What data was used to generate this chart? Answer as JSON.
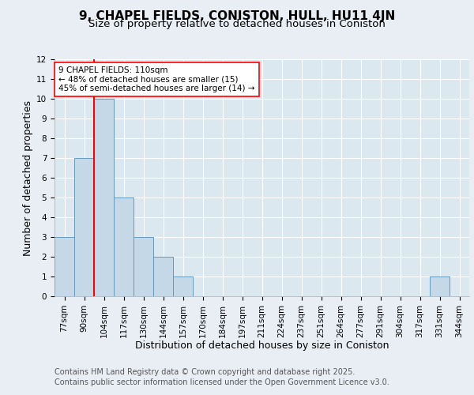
{
  "title": "9, CHAPEL FIELDS, CONISTON, HULL, HU11 4JN",
  "subtitle": "Size of property relative to detached houses in Coniston",
  "xlabel": "Distribution of detached houses by size in Coniston",
  "ylabel": "Number of detached properties",
  "bins": [
    "77sqm",
    "90sqm",
    "104sqm",
    "117sqm",
    "130sqm",
    "144sqm",
    "157sqm",
    "170sqm",
    "184sqm",
    "197sqm",
    "211sqm",
    "224sqm",
    "237sqm",
    "251sqm",
    "264sqm",
    "277sqm",
    "291sqm",
    "304sqm",
    "317sqm",
    "331sqm",
    "344sqm"
  ],
  "values": [
    3,
    7,
    10,
    5,
    3,
    2,
    1,
    0,
    0,
    0,
    0,
    0,
    0,
    0,
    0,
    0,
    0,
    0,
    0,
    1,
    0
  ],
  "bar_color": "#c5d8e8",
  "bar_edge_color": "#6699bb",
  "red_line_index": 2,
  "annotation_text": "9 CHAPEL FIELDS: 110sqm\n← 48% of detached houses are smaller (15)\n45% of semi-detached houses are larger (14) →",
  "ylim": [
    0,
    12
  ],
  "yticks": [
    0,
    1,
    2,
    3,
    4,
    5,
    6,
    7,
    8,
    9,
    10,
    11,
    12
  ],
  "footer_line1": "Contains HM Land Registry data © Crown copyright and database right 2025.",
  "footer_line2": "Contains public sector information licensed under the Open Government Licence v3.0.",
  "bg_color": "#e8eef4",
  "plot_bg_color": "#dce8f0",
  "grid_color": "#ffffff",
  "title_fontsize": 11,
  "subtitle_fontsize": 9.5,
  "axis_label_fontsize": 9,
  "tick_fontsize": 7.5,
  "footer_fontsize": 7,
  "ann_fontsize": 7.5
}
